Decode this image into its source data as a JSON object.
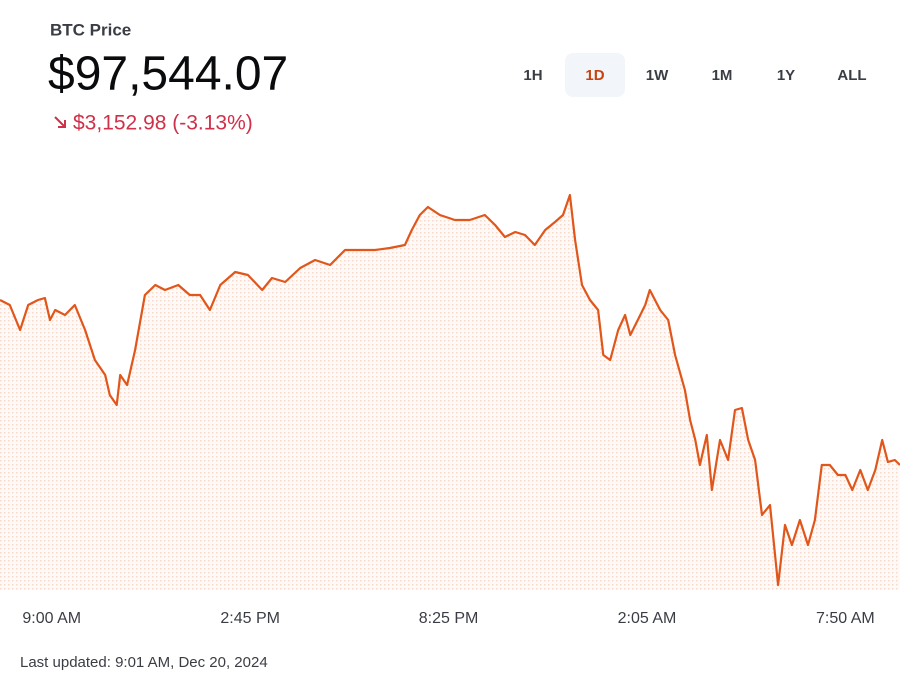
{
  "header": {
    "title": "BTC Price",
    "price": "$97,544.07",
    "change": "$3,152.98 (-3.13%)"
  },
  "ranges": [
    "1H",
    "1D",
    "1W",
    "1M",
    "1Y",
    "ALL"
  ],
  "footer": "Last updated: 9:01 AM, Dec 20, 2024",
  "chart_data": {
    "type": "line",
    "color": "#e0561b",
    "x": [
      -90,
      -73,
      -55,
      -41,
      -24,
      -12,
      -3,
      6,
      23,
      40,
      58,
      75,
      93,
      101,
      113,
      119,
      131,
      145,
      162,
      180,
      197,
      220,
      240,
      258,
      275,
      293,
      319,
      341,
      366,
      383,
      406,
      432,
      458,
      484,
      510,
      536,
      562,
      588,
      614,
      626,
      640,
      654,
      675,
      701,
      727,
      753,
      771,
      788,
      806,
      823,
      840,
      858,
      875,
      889,
      901,
      910,
      922,
      936,
      950,
      959,
      971,
      985,
      997,
      1006,
      1019,
      1032,
      1040,
      1058,
      1072,
      1084,
      1101,
      1110,
      1119,
      1127,
      1139,
      1148,
      1162,
      1176,
      1188,
      1200,
      1211,
      1223,
      1235,
      1249,
      1263,
      1275,
      1287,
      1301,
      1315,
      1327,
      1339,
      1353,
      1367,
      1380,
      1392,
      1406,
      1419,
      1432,
      1444,
      1454,
      1466,
      1475
    ],
    "values": [
      100800,
      100700,
      100200,
      100700,
      100800,
      100840,
      100400,
      100600,
      100500,
      100700,
      100200,
      99600,
      99300,
      98900,
      98700,
      99300,
      99100,
      99800,
      100900,
      101100,
      101000,
      101100,
      100900,
      100900,
      100600,
      101100,
      101360,
      101300,
      101000,
      101240,
      101160,
      101440,
      101600,
      101500,
      101800,
      101800,
      101800,
      101840,
      101900,
      102200,
      102500,
      102660,
      102500,
      102400,
      102400,
      102500,
      102300,
      102060,
      102160,
      102100,
      101900,
      102200,
      102360,
      102500,
      102900,
      102000,
      101100,
      100800,
      100600,
      99700,
      99600,
      100200,
      100500,
      100100,
      100400,
      100700,
      101000,
      100600,
      100400,
      99700,
      99000,
      98400,
      98000,
      97500,
      98100,
      97000,
      98000,
      97600,
      98600,
      98640,
      98000,
      97600,
      96500,
      96700,
      95100,
      96300,
      95900,
      96400,
      95900,
      96400,
      97500,
      97500,
      97300,
      97300,
      97000,
      97400,
      97000,
      97400,
      98000,
      97560,
      97600,
      97500
    ],
    "xlim": [
      -90,
      1475
    ],
    "ylim": [
      95000,
      103700
    ],
    "xticks": [
      {
        "value": 0,
        "label": "9:00 AM"
      },
      {
        "value": 345,
        "label": "2:45 PM"
      },
      {
        "value": 690,
        "label": "8:25 PM"
      },
      {
        "value": 1035,
        "label": "2:05 AM"
      },
      {
        "value": 1380,
        "label": "7:50 AM"
      }
    ],
    "grid": false
  }
}
